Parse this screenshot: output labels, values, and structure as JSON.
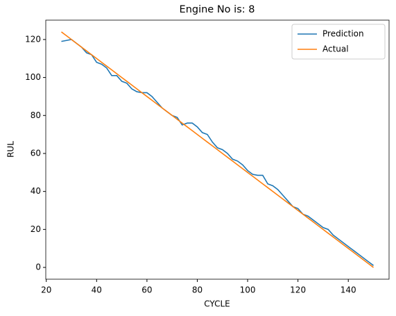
{
  "chart_data": {
    "type": "line",
    "title": "Engine No is: 8",
    "xlabel": "CYCLE",
    "ylabel": "RUL",
    "x": [
      26,
      28,
      30,
      32,
      34,
      36,
      38,
      40,
      42,
      44,
      46,
      48,
      50,
      52,
      54,
      56,
      58,
      60,
      62,
      64,
      66,
      68,
      70,
      72,
      74,
      76,
      78,
      80,
      82,
      84,
      86,
      88,
      90,
      92,
      94,
      96,
      98,
      100,
      102,
      104,
      106,
      108,
      110,
      112,
      114,
      116,
      118,
      120,
      122,
      124,
      126,
      128,
      130,
      132,
      134,
      136,
      138,
      140,
      142,
      144,
      146,
      148,
      150
    ],
    "series": [
      {
        "name": "Prediction",
        "color": "#1f77b4",
        "values": [
          119,
          119.5,
          120,
          118,
          116,
          113,
          112,
          108,
          107,
          105,
          101,
          101,
          98,
          97,
          94,
          92.5,
          92,
          92,
          90,
          87,
          84,
          82,
          80,
          79,
          75,
          76,
          76,
          74,
          71,
          70,
          66,
          63,
          62,
          60,
          57,
          56,
          54,
          51,
          49,
          48.5,
          48.5,
          44,
          43,
          41,
          38,
          35,
          32,
          31,
          28,
          27,
          25,
          23,
          21,
          20,
          17,
          15,
          13,
          11,
          9,
          7,
          5,
          3,
          1
        ]
      },
      {
        "name": "Actual",
        "color": "#ff7f0e",
        "values": [
          124,
          122,
          120,
          118,
          116,
          114,
          112,
          110,
          108,
          106,
          104,
          102,
          100,
          98,
          96,
          94,
          92,
          90,
          88,
          86,
          84,
          82,
          80,
          78,
          76,
          74,
          72,
          70,
          68,
          66,
          64,
          62,
          60,
          58,
          56,
          54,
          52,
          50,
          48,
          46,
          44,
          42,
          40,
          38,
          36,
          34,
          32,
          30,
          28,
          26,
          24,
          22,
          20,
          18,
          16,
          14,
          12,
          10,
          8,
          6,
          4,
          2,
          0
        ]
      }
    ],
    "xlim": [
      19.8,
      156.2
    ],
    "ylim": [
      -6.2,
      130.2
    ],
    "xticks": [
      20,
      40,
      60,
      80,
      100,
      120,
      140
    ],
    "yticks": [
      0,
      20,
      40,
      60,
      80,
      100,
      120
    ],
    "legend": "upper right"
  }
}
